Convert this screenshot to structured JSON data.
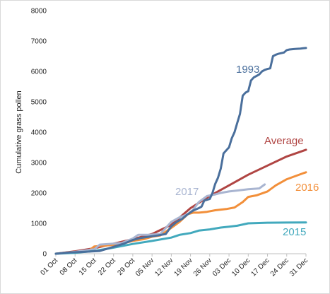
{
  "chart_data": {
    "type": "line",
    "title": "",
    "xlabel": "",
    "ylabel": "Cumulative grass pollen",
    "ylim": [
      0,
      8000
    ],
    "yticks": [
      0,
      1000,
      2000,
      3000,
      4000,
      5000,
      6000,
      7000,
      8000
    ],
    "xlim": [
      0,
      91
    ],
    "xticks": [
      {
        "label": "01 Oct",
        "day": 0
      },
      {
        "label": "08 Oct",
        "day": 7
      },
      {
        "label": "15 Oct",
        "day": 14
      },
      {
        "label": "22 Oct",
        "day": 21
      },
      {
        "label": "29 Oct",
        "day": 28
      },
      {
        "label": "05 Nov",
        "day": 35
      },
      {
        "label": "12 Nov",
        "day": 42
      },
      {
        "label": "19 Nov",
        "day": 49
      },
      {
        "label": "26 Nov",
        "day": 56
      },
      {
        "label": "03 Dec",
        "day": 63
      },
      {
        "label": "10 Dec",
        "day": 70
      },
      {
        "label": "17 Dec",
        "day": 77
      },
      {
        "label": "24 Dec",
        "day": 84
      },
      {
        "label": "31 Dec",
        "day": 91
      }
    ],
    "grid": false,
    "legend": "inline labels",
    "series": [
      {
        "name": "1993",
        "color": "#4a6f9c",
        "x": [
          0,
          5,
          10,
          16,
          20,
          25,
          28,
          31,
          34,
          37,
          40,
          42,
          44,
          46,
          48,
          50,
          52,
          53,
          54,
          56,
          57,
          58,
          59,
          60,
          61,
          62,
          63,
          64,
          65,
          66,
          67,
          68,
          69,
          70,
          71,
          72,
          73,
          74,
          75,
          76,
          77,
          78,
          79,
          80,
          81,
          82,
          83,
          84,
          85,
          86,
          87,
          88,
          89,
          90,
          91
        ],
        "y": [
          0,
          40,
          60,
          90,
          200,
          340,
          450,
          520,
          560,
          600,
          650,
          900,
          1050,
          1150,
          1300,
          1420,
          1500,
          1550,
          1750,
          1800,
          2000,
          2300,
          2500,
          2800,
          3300,
          3400,
          3500,
          3800,
          4000,
          4300,
          4600,
          5200,
          5300,
          5350,
          5700,
          5800,
          5850,
          5900,
          6000,
          6050,
          6080,
          6100,
          6500,
          6550,
          6580,
          6600,
          6620,
          6700,
          6720,
          6730,
          6740,
          6745,
          6750,
          6760,
          6770
        ]
      },
      {
        "name": "Average",
        "color": "#b04543",
        "x": [
          0,
          7,
          14,
          21,
          28,
          35,
          42,
          49,
          56,
          63,
          70,
          77,
          84,
          91
        ],
        "y": [
          0,
          80,
          180,
          330,
          480,
          650,
          950,
          1500,
          1900,
          2250,
          2600,
          2900,
          3200,
          3420
        ]
      },
      {
        "name": "2016",
        "color": "#f28f3a",
        "x": [
          0,
          7,
          12,
          14,
          17,
          21,
          24,
          28,
          32,
          35,
          38,
          42,
          45,
          48,
          50,
          52,
          55,
          58,
          62,
          65,
          68,
          70,
          73,
          77,
          80,
          84,
          87,
          90,
          91
        ],
        "y": [
          0,
          60,
          100,
          240,
          260,
          290,
          330,
          420,
          480,
          560,
          600,
          850,
          1050,
          1300,
          1350,
          1350,
          1380,
          1430,
          1470,
          1520,
          1700,
          1870,
          1920,
          2050,
          2250,
          2450,
          2550,
          2650,
          2680
        ]
      },
      {
        "name": "2017",
        "color": "#a9b5d1",
        "x": [
          0,
          7,
          14,
          16,
          21,
          24,
          28,
          30,
          34,
          38,
          42,
          45,
          48,
          50,
          52,
          55,
          58,
          60,
          63,
          66,
          70,
          74,
          76
        ],
        "y": [
          0,
          60,
          150,
          300,
          330,
          350,
          500,
          620,
          620,
          650,
          1050,
          1200,
          1300,
          1450,
          1700,
          1900,
          1950,
          2000,
          2050,
          2080,
          2120,
          2150,
          2280
        ]
      },
      {
        "name": "2015",
        "color": "#42a9bd",
        "x": [
          0,
          7,
          14,
          21,
          28,
          35,
          42,
          45,
          49,
          52,
          56,
          60,
          63,
          66,
          70,
          77,
          84,
          91
        ],
        "y": [
          0,
          30,
          90,
          200,
          320,
          420,
          530,
          620,
          680,
          760,
          800,
          860,
          890,
          920,
          1000,
          1020,
          1025,
          1030
        ]
      }
    ],
    "series_labels": [
      {
        "series": "1993",
        "text": "1993"
      },
      {
        "series": "Average",
        "text": "Average"
      },
      {
        "series": "2016",
        "text": "2016"
      },
      {
        "series": "2017",
        "text": "2017"
      },
      {
        "series": "2015",
        "text": "2015"
      }
    ]
  }
}
